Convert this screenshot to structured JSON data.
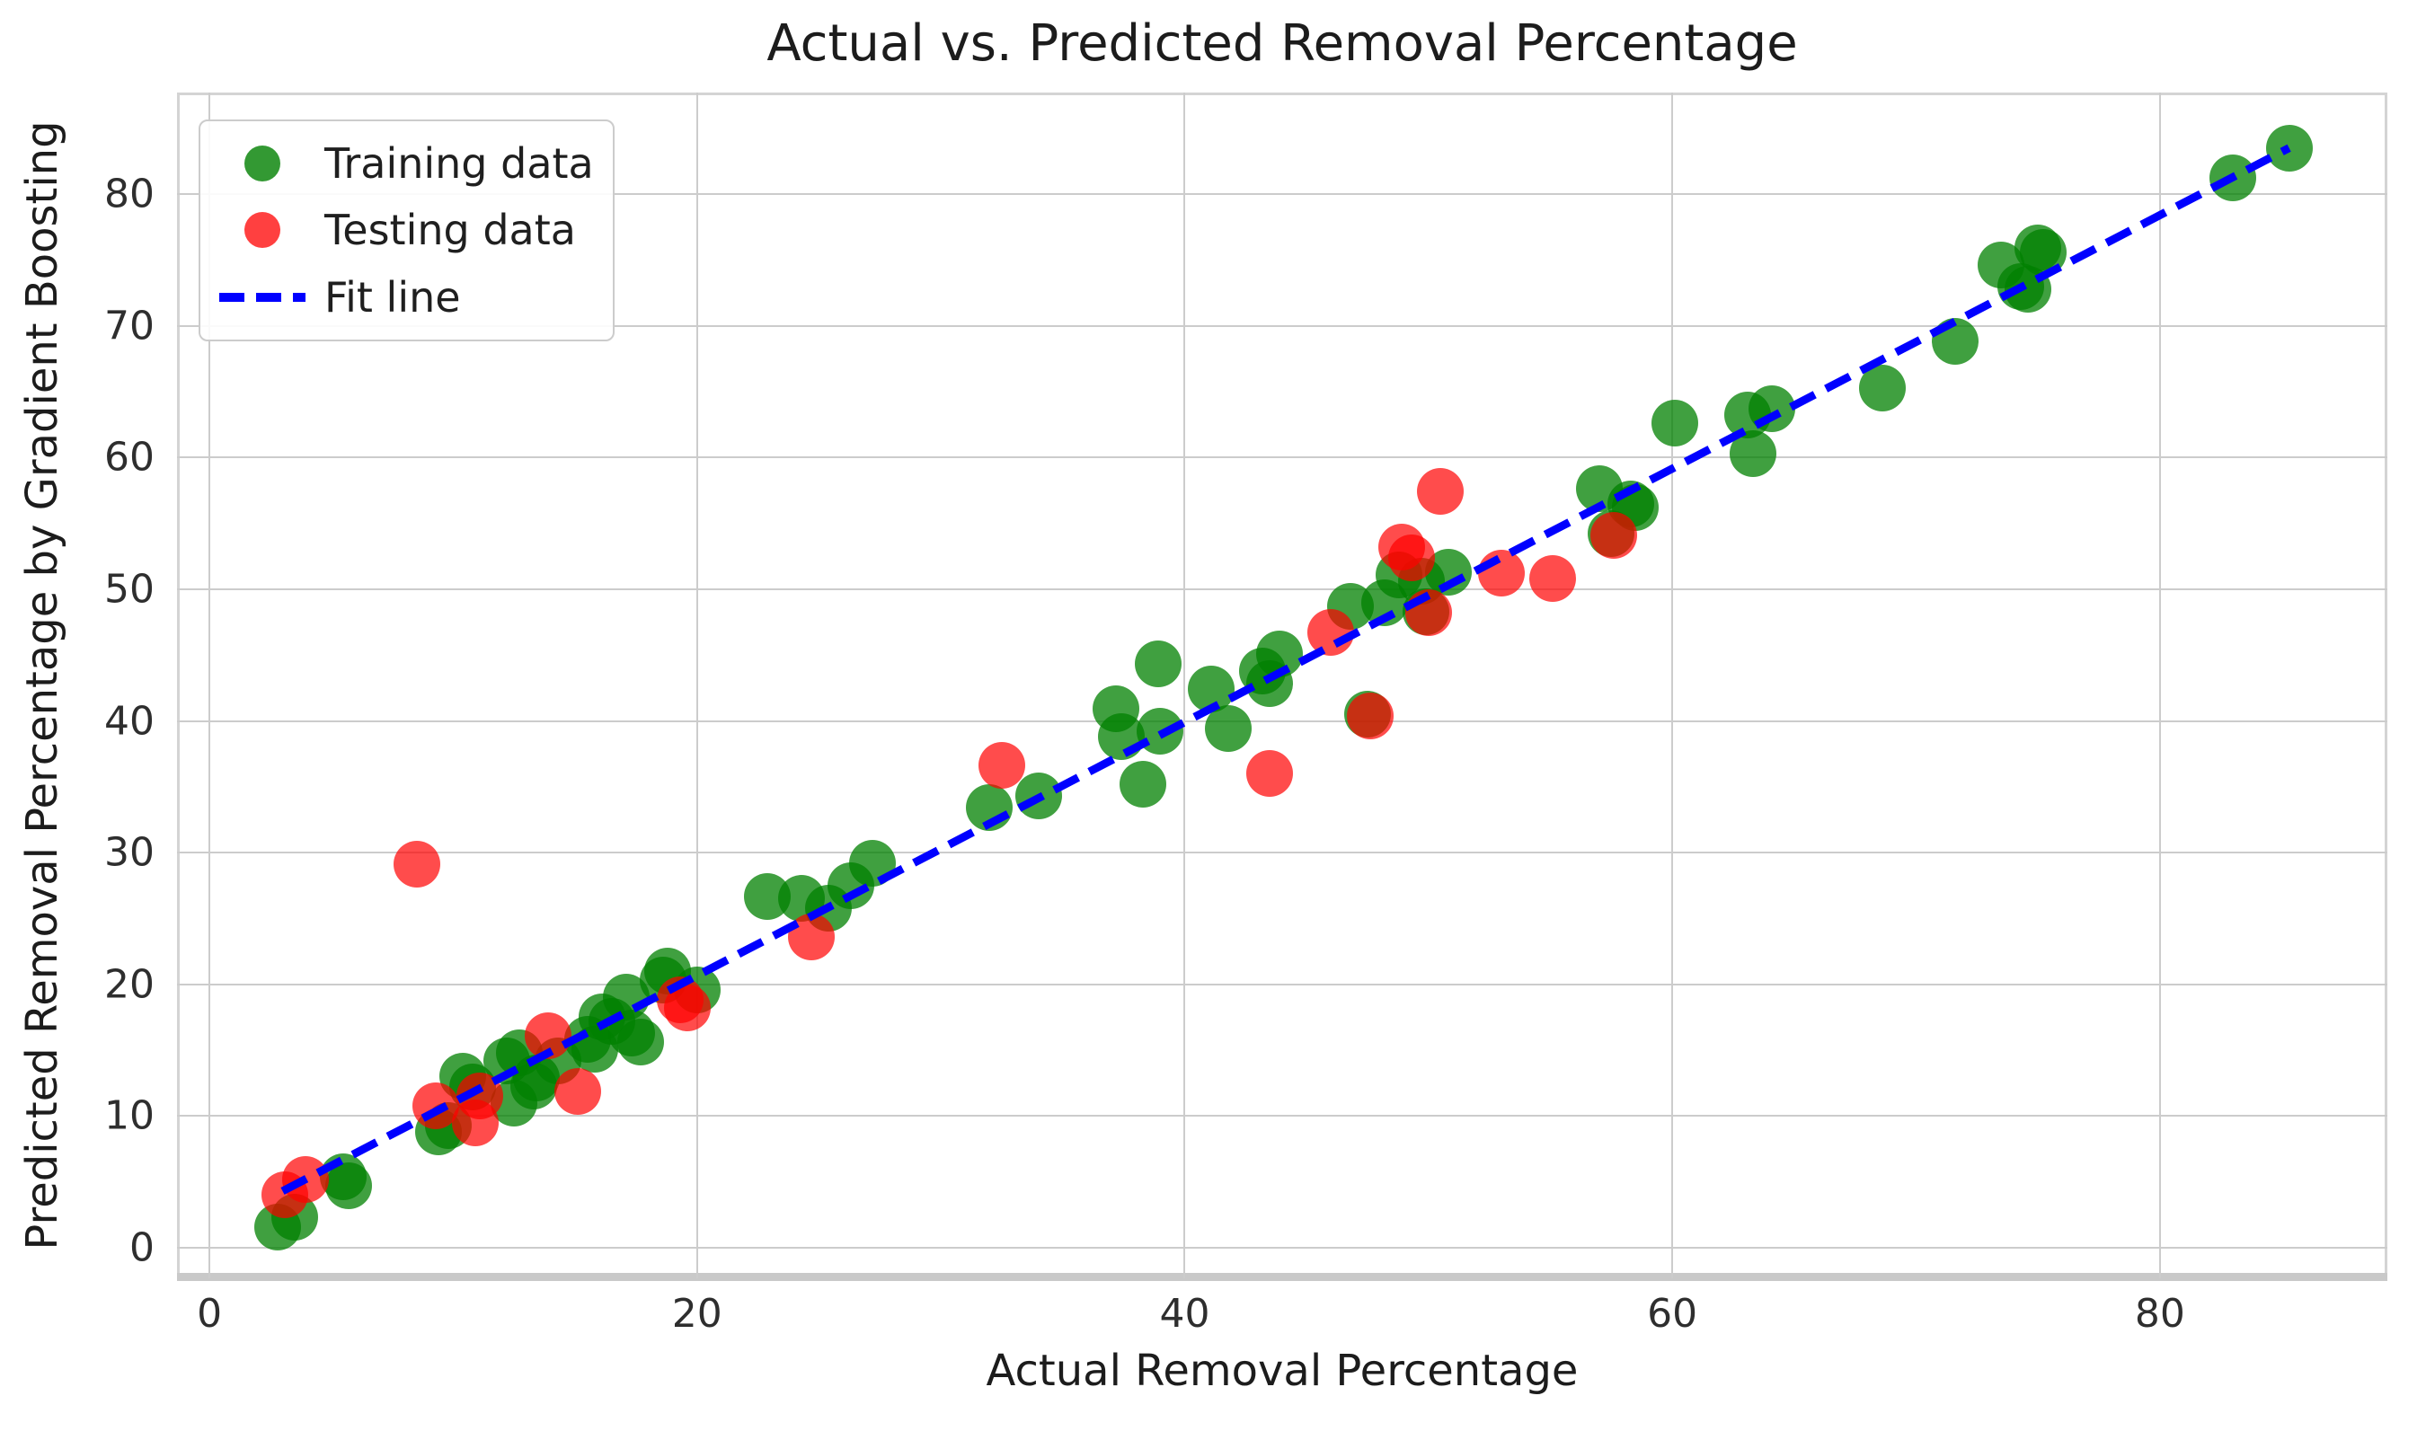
{
  "figure": {
    "title": "Actual vs. Predicted Removal Percentage",
    "xlabel": "Actual Removal Percentage",
    "ylabel": "Predicted Removal Percentage by Gradient Boosting"
  },
  "legend": {
    "training_label": "Training data",
    "testing_label": "Testing data",
    "fitline_label": "Fit line"
  },
  "colors": {
    "training": "#008000",
    "testing": "#ff0000",
    "fit_line": "#0000ff",
    "grid": "#cccccc"
  },
  "chart_data": {
    "type": "scatter",
    "title": "Actual vs. Predicted Removal Percentage",
    "xlabel": "Actual Removal Percentage",
    "ylabel": "Predicted Removal Percentage by Gradient Boosting",
    "xlim": [
      -1.33,
      89.33
    ],
    "ylim": [
      -2.32,
      87.71
    ],
    "xticks": [
      0,
      20,
      40,
      60,
      80
    ],
    "yticks": [
      0,
      10,
      20,
      30,
      40,
      50,
      60,
      70,
      80
    ],
    "grid": true,
    "legend_position": "upper-left",
    "series": [
      {
        "name": "Training data",
        "color": "#008000",
        "alpha": 0.75,
        "points": [
          [
            2.8,
            1.6
          ],
          [
            3.5,
            2.3
          ],
          [
            5.5,
            5.4
          ],
          [
            5.7,
            4.7
          ],
          [
            9.4,
            8.8
          ],
          [
            9.8,
            9.3
          ],
          [
            10.4,
            13.0
          ],
          [
            10.8,
            12.2
          ],
          [
            12.2,
            14.2
          ],
          [
            12.7,
            14.8
          ],
          [
            12.5,
            11.0
          ],
          [
            13.3,
            12.3
          ],
          [
            13.4,
            12.9
          ],
          [
            14.3,
            14.2
          ],
          [
            15.5,
            15.8
          ],
          [
            15.8,
            15.1
          ],
          [
            16.1,
            17.5
          ],
          [
            16.5,
            17.2
          ],
          [
            17.1,
            19.0
          ],
          [
            17.3,
            16.3
          ],
          [
            17.7,
            15.6
          ],
          [
            18.6,
            20.3
          ],
          [
            18.8,
            21.0
          ],
          [
            20.0,
            19.6
          ],
          [
            22.9,
            26.7
          ],
          [
            24.3,
            26.5
          ],
          [
            25.4,
            25.8
          ],
          [
            26.3,
            27.5
          ],
          [
            27.2,
            29.2
          ],
          [
            32.0,
            33.4
          ],
          [
            34.0,
            34.3
          ],
          [
            37.2,
            40.9
          ],
          [
            37.4,
            38.8
          ],
          [
            38.3,
            35.2
          ],
          [
            38.9,
            44.3
          ],
          [
            39.0,
            39.2
          ],
          [
            41.1,
            42.4
          ],
          [
            41.8,
            39.4
          ],
          [
            43.2,
            43.8
          ],
          [
            43.5,
            42.8
          ],
          [
            43.9,
            45.1
          ],
          [
            46.8,
            48.7
          ],
          [
            47.5,
            40.5
          ],
          [
            48.2,
            49.0
          ],
          [
            48.8,
            51.1
          ],
          [
            49.7,
            50.6
          ],
          [
            49.9,
            48.3
          ],
          [
            50.8,
            51.3
          ],
          [
            57.0,
            57.6
          ],
          [
            57.5,
            54.2
          ],
          [
            58.3,
            56.5
          ],
          [
            58.5,
            56.2
          ],
          [
            60.1,
            62.6
          ],
          [
            63.1,
            63.2
          ],
          [
            63.3,
            60.3
          ],
          [
            64.1,
            63.7
          ],
          [
            68.6,
            65.3
          ],
          [
            71.6,
            68.8
          ],
          [
            73.5,
            74.6
          ],
          [
            74.3,
            73.0
          ],
          [
            74.6,
            72.8
          ],
          [
            75.0,
            75.9
          ],
          [
            75.2,
            75.6
          ],
          [
            83.0,
            81.2
          ],
          [
            85.3,
            83.5
          ]
        ]
      },
      {
        "name": "Testing data",
        "color": "#ff0000",
        "alpha": 0.7,
        "points": [
          [
            3.1,
            4.0
          ],
          [
            3.95,
            5.2
          ],
          [
            8.5,
            29.1
          ],
          [
            9.3,
            10.8
          ],
          [
            10.9,
            9.5
          ],
          [
            11.1,
            11.5
          ],
          [
            13.9,
            16.1
          ],
          [
            15.1,
            11.9
          ],
          [
            19.3,
            18.8
          ],
          [
            19.6,
            18.2
          ],
          [
            24.7,
            23.6
          ],
          [
            32.5,
            36.6
          ],
          [
            43.5,
            36.0
          ],
          [
            46.0,
            46.7
          ],
          [
            47.6,
            40.4
          ],
          [
            48.9,
            53.2
          ],
          [
            49.3,
            52.4
          ],
          [
            50.0,
            48.2
          ],
          [
            50.5,
            57.4
          ],
          [
            53.0,
            51.2
          ],
          [
            55.1,
            50.8
          ],
          [
            57.6,
            54.1
          ]
        ]
      }
    ],
    "fit_line": {
      "name": "Fit line",
      "color": "#0000ff",
      "style": "dashed",
      "x": [
        3.0,
        85.3
      ],
      "y": [
        4.3,
        83.5
      ]
    }
  }
}
